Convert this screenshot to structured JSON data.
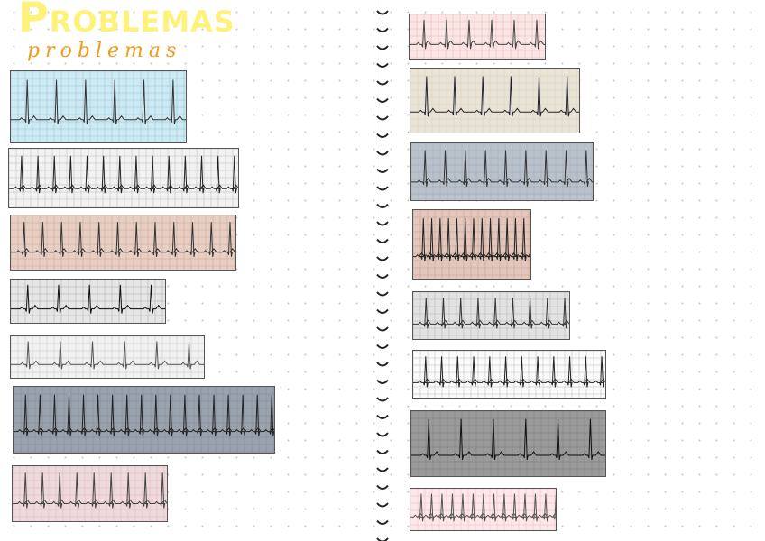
{
  "title": "Problemas",
  "title_script": "problemas",
  "colors": {
    "title": "#fff27a",
    "script": "#f39a1a"
  },
  "strips": [
    {
      "bg": "#cfe9f2",
      "grid": "#8cc3d8",
      "trace": "#333"
    },
    {
      "bg": "#f2f2f2",
      "grid": "#bbbbbb",
      "trace": "#222"
    },
    {
      "bg": "#e8cfc4",
      "grid": "#c9a394",
      "trace": "#333"
    },
    {
      "bg": "#e6e6e6",
      "grid": "#aaaaaa",
      "trace": "#111"
    },
    {
      "bg": "#f1f1f1",
      "grid": "#c8c8c8",
      "trace": "#555"
    },
    {
      "bg": "#9aa3ad",
      "grid": "#7d8792",
      "trace": "#222"
    },
    {
      "bg": "#eed9dd",
      "grid": "#d9b6bd",
      "trace": "#444"
    },
    {
      "bg": "#fbe6e6",
      "grid": "#eab5b5",
      "trace": "#444"
    },
    {
      "bg": "#e9e3d6",
      "grid": "#d6cfc0",
      "trace": "#223"
    },
    {
      "bg": "#b9c1cb",
      "grid": "#a0a9b4",
      "trace": "#333"
    },
    {
      "bg": "#e2c7bd",
      "grid": "#c99a8c",
      "trace": "#222"
    },
    {
      "bg": "#e2e2e2",
      "grid": "#b0b0b0",
      "trace": "#333"
    },
    {
      "bg": "#fbfbfb",
      "grid": "#bbbbbb",
      "trace": "#222"
    },
    {
      "bg": "#9a9a9a",
      "grid": "#7a7a7a",
      "trace": "#111"
    },
    {
      "bg": "#fce8ea",
      "grid": "#f0b9bf",
      "trace": "#555"
    }
  ]
}
